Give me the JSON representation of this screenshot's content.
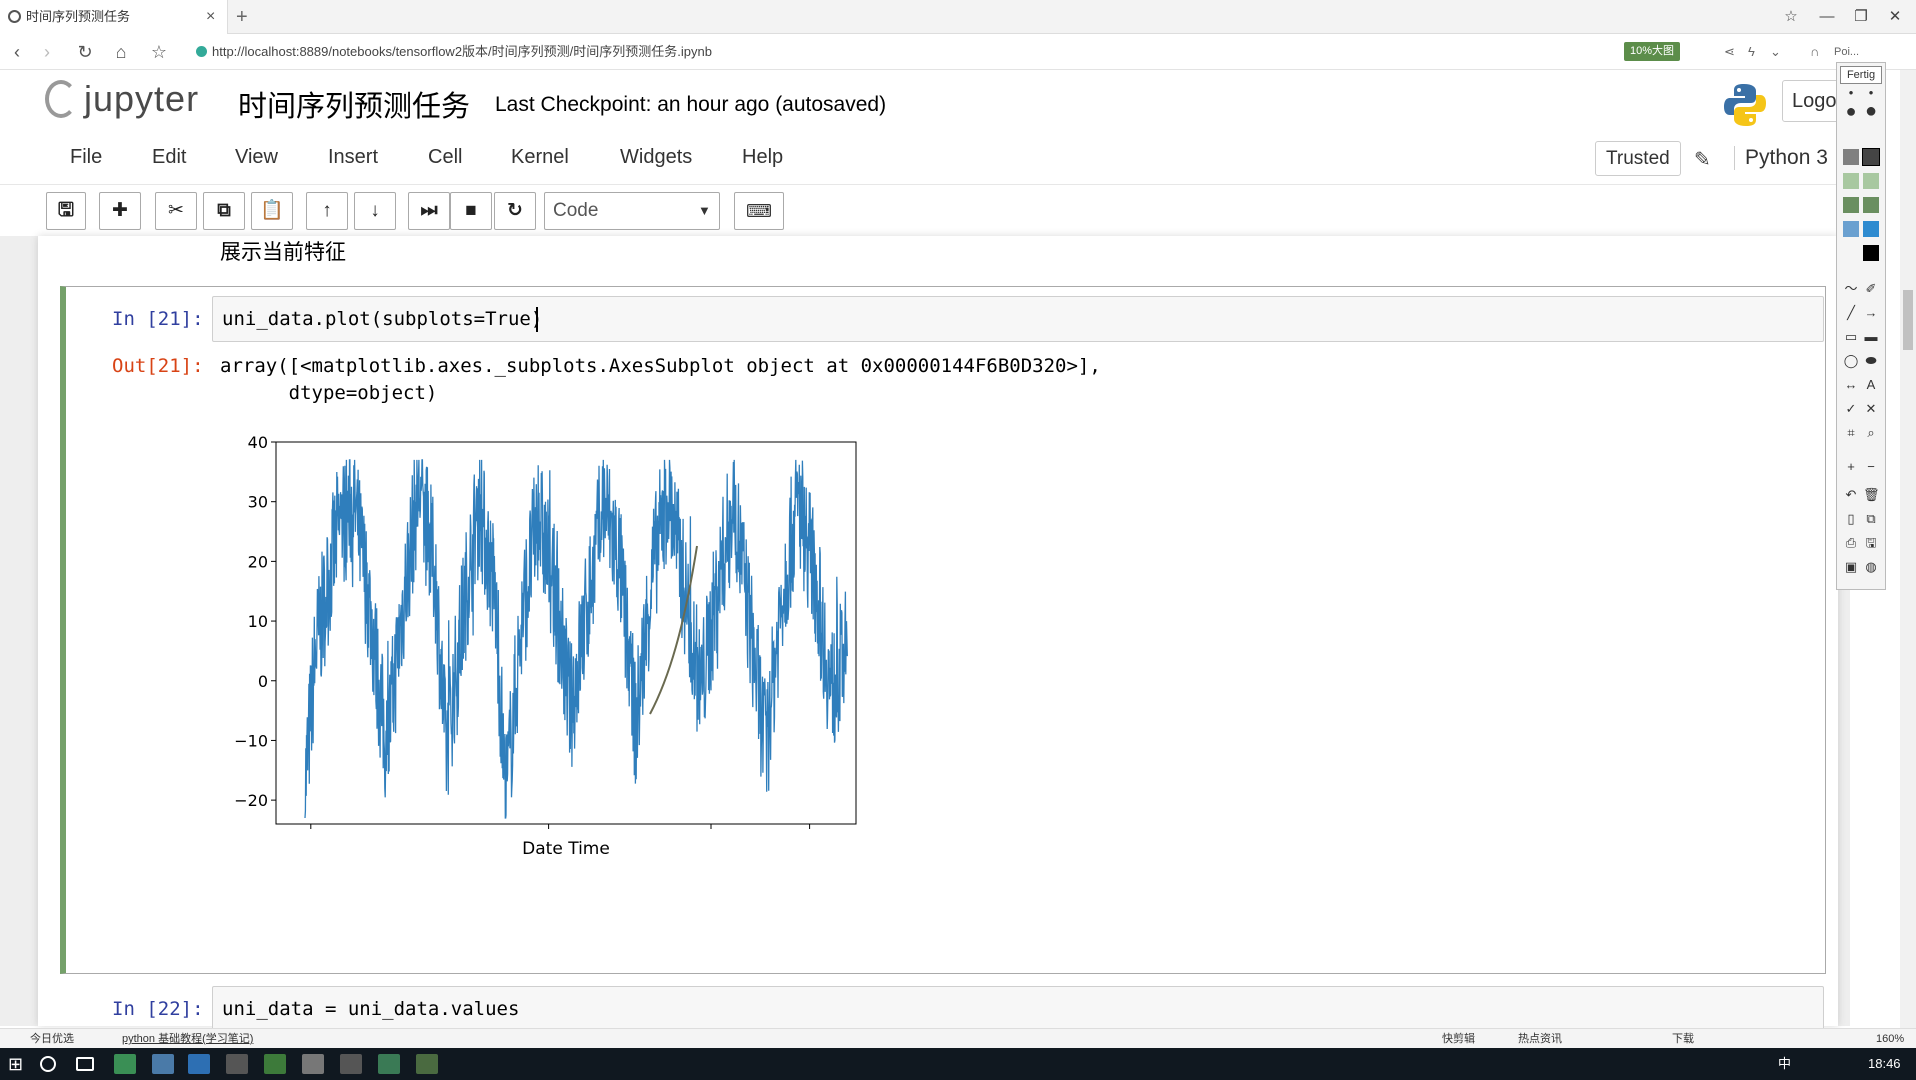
{
  "browser": {
    "tab_title": "时间序列预测任务",
    "tab_close": "×",
    "new_tab": "+",
    "url": "http://localhost:8889/notebooks/tensorflow2版本/时间序列预测/时间序列预测任务.ipynb",
    "badge": "10%大图",
    "profile_text": "Poi..."
  },
  "jupyter": {
    "logo_text": "jupyter",
    "notebook_title": "时间序列预测任务",
    "checkpoint": "Last Checkpoint: an hour ago (autosaved)",
    "logout_label": "Logo",
    "menu": [
      "File",
      "Edit",
      "View",
      "Insert",
      "Cell",
      "Kernel",
      "Widgets",
      "Help"
    ],
    "trusted_label": "Trusted",
    "kernel_name": "Python 3",
    "cell_type": "Code",
    "toolbar_icons": [
      "save-icon",
      "add-icon",
      "cut-icon",
      "copy-icon",
      "paste-icon",
      "arrow-up-icon",
      "arrow-down-icon",
      "run-icon",
      "stop-icon",
      "restart-icon"
    ]
  },
  "notebook": {
    "markdown_text": "展示当前特征",
    "cell21": {
      "in_prompt": "In [21]:",
      "code": "uni_data.plot(subplots=True)",
      "out_prompt": "Out[21]:",
      "output_line1": "array([<matplotlib.axes._subplots.AxesSubplot object at 0x00000144F6B0D320>],",
      "output_line2": "      dtype=object)"
    },
    "cell22": {
      "in_prompt": "In [22]:",
      "code": "uni_data = uni_data.values"
    }
  },
  "chart_data": {
    "type": "line",
    "xlabel": "Date Time",
    "ylabel": "",
    "ylim": [
      -24,
      40
    ],
    "yticks": [
      40,
      30,
      20,
      10,
      0,
      -10,
      -20
    ],
    "series": [
      {
        "color": "#2f7ebc",
        "description_points": [
          [
            0.0,
            -18
          ],
          [
            0.02,
            5
          ],
          [
            0.06,
            25
          ],
          [
            0.09,
            30
          ],
          [
            0.12,
            12
          ],
          [
            0.15,
            -12
          ],
          [
            0.18,
            12
          ],
          [
            0.21,
            33
          ],
          [
            0.24,
            18
          ],
          [
            0.26,
            -12
          ],
          [
            0.29,
            10
          ],
          [
            0.32,
            30
          ],
          [
            0.35,
            15
          ],
          [
            0.37,
            -20
          ],
          [
            0.4,
            10
          ],
          [
            0.43,
            28
          ],
          [
            0.46,
            15
          ],
          [
            0.49,
            -5
          ],
          [
            0.52,
            12
          ],
          [
            0.55,
            30
          ],
          [
            0.58,
            20
          ],
          [
            0.61,
            -8
          ],
          [
            0.64,
            18
          ],
          [
            0.67,
            32
          ],
          [
            0.7,
            15
          ],
          [
            0.73,
            -2
          ],
          [
            0.76,
            15
          ],
          [
            0.79,
            30
          ],
          [
            0.82,
            10
          ],
          [
            0.85,
            -12
          ],
          [
            0.88,
            15
          ],
          [
            0.91,
            30
          ],
          [
            0.94,
            18
          ],
          [
            0.97,
            -2
          ],
          [
            1.0,
            5
          ]
        ]
      }
    ]
  },
  "palette": {
    "done_label": "Fertig",
    "colors": [
      "#808080",
      "#a8c8a0",
      "#6a8f60",
      "#2e8bd0",
      "#000000"
    ]
  },
  "statusbar": {
    "left_text": "今日优选",
    "python_link": "python 基础教程(学习笔记)",
    "right_items": [
      "快剪辑",
      "热点资讯",
      "下载"
    ],
    "zoom": "160%"
  },
  "taskbar": {
    "ime": "中",
    "clock": "18:46"
  }
}
